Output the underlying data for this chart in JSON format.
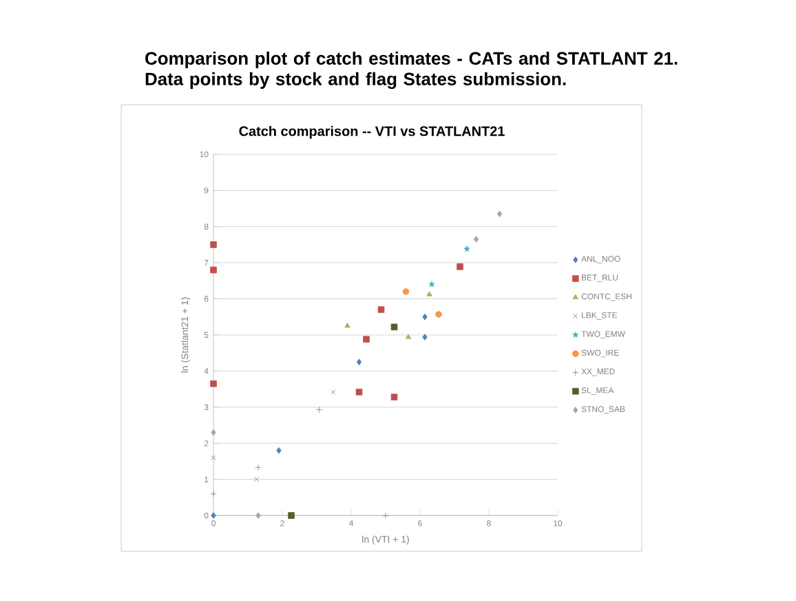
{
  "chart_data": {
    "type": "scatter",
    "title": "Comparison plot of catch estimates - CATs and STATLANT 21. Data points by stock and flag States submission.",
    "subtitle": "Catch comparison -- VTI vs STATLANT21",
    "xlabel": "ln (VTI + 1)",
    "ylabel": "ln (Statlant21 + 1)",
    "xlim": [
      0,
      10
    ],
    "ylim": [
      0,
      10
    ],
    "xticks": [
      0,
      2,
      4,
      6,
      8,
      10
    ],
    "yticks": [
      0,
      1,
      2,
      3,
      4,
      5,
      6,
      7,
      8,
      9,
      10
    ],
    "grid": "y",
    "legend": "right",
    "series": [
      {
        "name": "ANL_NOO",
        "color": "#4f81bd",
        "marker": "diamond",
        "x": [
          4.23,
          6.14,
          6.14,
          1.9,
          0
        ],
        "values": [
          4.25,
          4.94,
          5.5,
          1.8,
          0
        ]
      },
      {
        "name": "BET_RLU",
        "color": "#c0504d",
        "marker": "square",
        "x": [
          0,
          0,
          0,
          4.23,
          5.25,
          4.44,
          4.87,
          7.16
        ],
        "values": [
          7.5,
          6.8,
          3.65,
          3.42,
          3.28,
          4.88,
          5.7,
          6.89
        ]
      },
      {
        "name": "CONTC_ESH",
        "color": "#9bbb59",
        "marker": "triangle",
        "x": [
          6.27,
          3.89,
          5.66
        ],
        "values": [
          6.12,
          5.25,
          4.94
        ]
      },
      {
        "name": "LBK_STE",
        "color": "#8064a2",
        "marker": "cross",
        "x": [
          3.48,
          0,
          1.25
        ],
        "values": [
          3.42,
          1.6,
          1.0
        ]
      },
      {
        "name": "TWO_EMW",
        "color": "#4bacc6",
        "marker": "star",
        "x": [
          7.36,
          6.34
        ],
        "values": [
          7.38,
          6.4
        ]
      },
      {
        "name": "SWO_IRE",
        "color": "#f79646",
        "marker": "circle",
        "x": [
          6.54,
          5.59
        ],
        "values": [
          5.57,
          6.2
        ]
      },
      {
        "name": "XX_MED",
        "color": "#7f7f7f",
        "marker": "plus",
        "x": [
          3.07,
          1.3,
          0,
          5.0
        ],
        "values": [
          2.93,
          1.33,
          0.6,
          0
        ]
      },
      {
        "name": "SL_MEA",
        "color": "#4f6228",
        "marker": "square",
        "x": [
          2.26,
          5.25
        ],
        "values": [
          0,
          5.22
        ]
      },
      {
        "name": "STNO_SAB",
        "color": "#a5a5a5",
        "marker": "diamond",
        "x": [
          8.31,
          7.63,
          0,
          1.3
        ],
        "values": [
          8.35,
          7.65,
          2.3,
          0
        ]
      }
    ]
  }
}
